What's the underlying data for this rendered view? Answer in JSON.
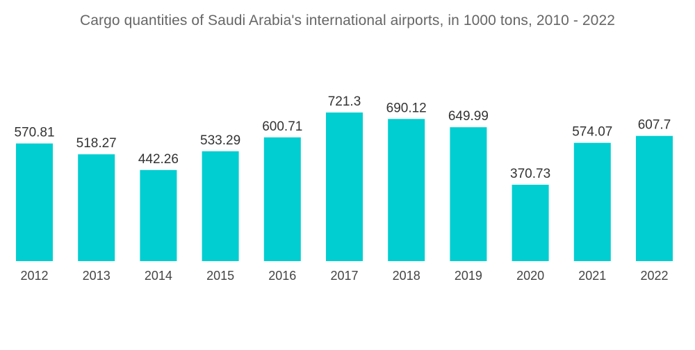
{
  "chart_data": {
    "type": "bar",
    "title": "Cargo quantities of Saudi Arabia's international airports, in 1000 tons, 2010 - 2022",
    "categories": [
      "2012",
      "2013",
      "2014",
      "2015",
      "2016",
      "2017",
      "2018",
      "2019",
      "2020",
      "2021",
      "2022"
    ],
    "values": [
      570.81,
      518.27,
      442.26,
      533.29,
      600.71,
      721.3,
      690.12,
      649.99,
      370.73,
      574.07,
      607.7
    ],
    "value_labels": [
      "570.81",
      "518.27",
      "442.26",
      "533.29",
      "600.71",
      "721.3",
      "690.12",
      "649.99",
      "370.73",
      "574.07",
      "607.7"
    ],
    "xlabel": "",
    "ylabel": "",
    "ylim": [
      0,
      721.3
    ],
    "grid": false,
    "legend": "none",
    "bar_color": "#00CED1"
  }
}
